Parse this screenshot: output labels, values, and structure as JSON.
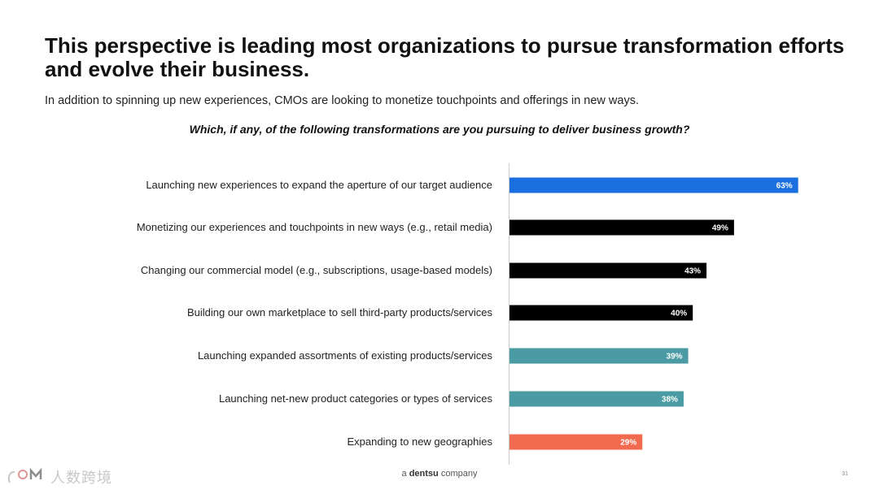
{
  "slide": {
    "title": "This perspective is leading most organizations to pursue transformation efforts and evolve their business.",
    "subtitle": "In addition to spinning up new experiences, CMOs are looking to monetize touchpoints and offerings in new ways.",
    "question": "Which, if any, of the following transformations are you pursuing to deliver business growth?",
    "footer_prefix": "a",
    "footer_brand": "dentsu",
    "footer_suffix": "company",
    "page_number": "31",
    "watermark_text": "人数跨境"
  },
  "chart_data": {
    "type": "bar",
    "orientation": "horizontal",
    "categories": [
      "Launching new experiences to expand the aperture of our target audience",
      "Monetizing our experiences and touchpoints in new ways (e.g., retail media)",
      "Changing our commercial model (e.g., subscriptions, usage-based models)",
      "Building our own marketplace to sell third-party products/services",
      "Launching expanded assortments of existing products/services",
      "Launching net-new product categories or types of services",
      "Expanding to new geographies"
    ],
    "values": [
      63,
      49,
      43,
      40,
      39,
      38,
      29
    ],
    "value_labels": [
      "63%",
      "49%",
      "43%",
      "40%",
      "39%",
      "38%",
      "29%"
    ],
    "colors": [
      "#1a6fdf",
      "#000000",
      "#000000",
      "#000000",
      "#4a9ba3",
      "#4a9ba3",
      "#f26b50"
    ],
    "xlim": [
      0,
      100
    ],
    "grid": false,
    "legend": "none"
  }
}
